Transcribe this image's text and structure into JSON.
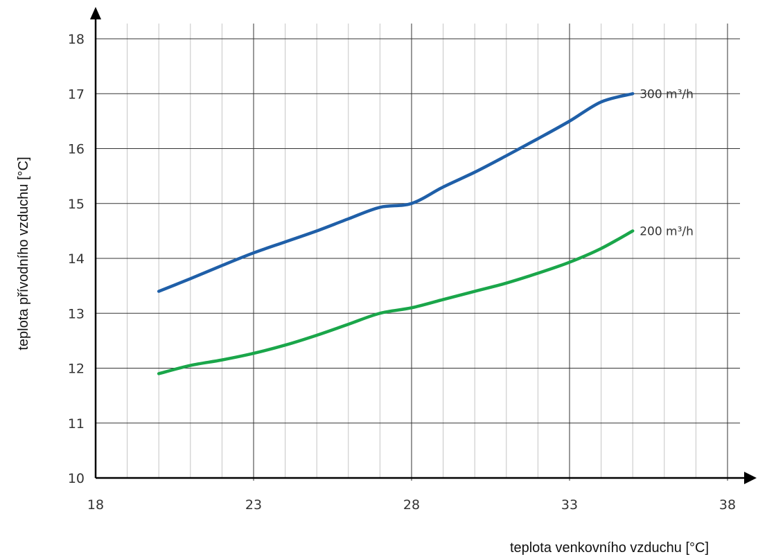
{
  "chart_data": {
    "type": "line",
    "xlabel": "teplota venkovního vzduchu [°C]",
    "ylabel": "teplota přívodního vzduchu [°C]",
    "xlim": [
      18,
      38
    ],
    "ylim": [
      10,
      18
    ],
    "x_ticks": [
      18,
      23,
      28,
      33,
      38
    ],
    "y_ticks": [
      10,
      11,
      12,
      13,
      14,
      15,
      16,
      17,
      18
    ],
    "x_minor_step": 1,
    "grid": true,
    "series": [
      {
        "name": "300 m³/h",
        "color": "#1f5fa8",
        "points": [
          [
            20,
            13.4
          ],
          [
            21,
            13.63
          ],
          [
            22,
            13.87
          ],
          [
            23,
            14.1
          ],
          [
            24,
            14.3
          ],
          [
            25,
            14.5
          ],
          [
            26,
            14.72
          ],
          [
            27,
            14.93
          ],
          [
            28,
            15.0
          ],
          [
            29,
            15.3
          ],
          [
            30,
            15.57
          ],
          [
            31,
            15.87
          ],
          [
            32,
            16.18
          ],
          [
            33,
            16.5
          ],
          [
            34,
            16.85
          ],
          [
            35,
            17.0
          ]
        ]
      },
      {
        "name": "200 m³/h",
        "color": "#1aa64a",
        "points": [
          [
            20,
            11.9
          ],
          [
            21,
            12.05
          ],
          [
            22,
            12.15
          ],
          [
            23,
            12.27
          ],
          [
            24,
            12.42
          ],
          [
            25,
            12.6
          ],
          [
            26,
            12.8
          ],
          [
            27,
            13.0
          ],
          [
            28,
            13.1
          ],
          [
            29,
            13.25
          ],
          [
            30,
            13.4
          ],
          [
            31,
            13.55
          ],
          [
            32,
            13.73
          ],
          [
            33,
            13.93
          ],
          [
            34,
            14.18
          ],
          [
            35,
            14.5
          ]
        ]
      }
    ]
  }
}
